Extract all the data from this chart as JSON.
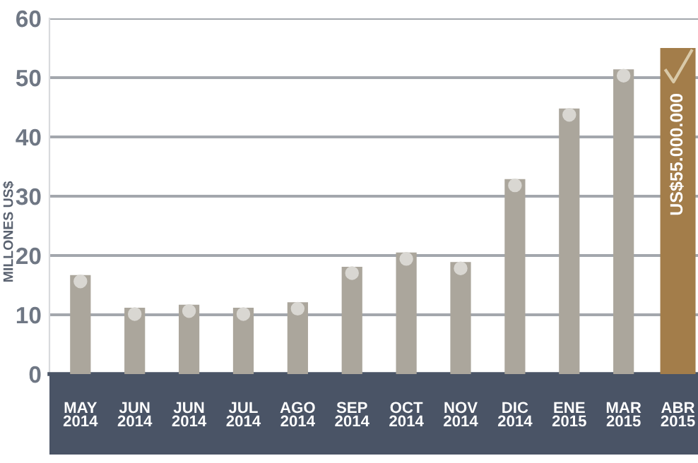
{
  "chart_data": {
    "type": "bar",
    "ylabel": "MILLONES US$",
    "categories": [
      "MAY\n2014",
      "JUN\n2014",
      "JUN\n2014",
      "JUL\n2014",
      "AGO\n2014",
      "SEP\n2014",
      "OCT\n2014",
      "NOV\n2014",
      "DIC\n2014",
      "ENE\n2015",
      "MAR\n2015",
      "ABR\n2015"
    ],
    "values": [
      16.7,
      11.2,
      11.7,
      11.2,
      12.1,
      18.1,
      20.5,
      18.9,
      32.9,
      44.8,
      51.4,
      55
    ],
    "colors": [
      "#aba69c",
      "#aba69c",
      "#aba69c",
      "#aba69c",
      "#aba69c",
      "#aba69c",
      "#aba69c",
      "#aba69c",
      "#aba69c",
      "#aba69c",
      "#aba69c",
      "#a37d4a"
    ],
    "value_labels": [
      null,
      null,
      null,
      null,
      null,
      null,
      null,
      null,
      null,
      null,
      null,
      "US$55.000.000"
    ],
    "ylim": [
      0,
      60
    ],
    "yticks": [
      0,
      10,
      20,
      30,
      40,
      50,
      60
    ],
    "grid": "y"
  }
}
